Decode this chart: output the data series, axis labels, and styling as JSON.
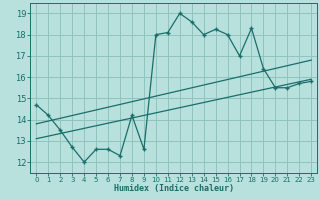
{
  "xlabel": "Humidex (Indice chaleur)",
  "bg_color": "#b8e0dc",
  "grid_color": "#90c4c0",
  "line_color": "#1a6e6a",
  "xlim": [
    -0.5,
    23.5
  ],
  "ylim": [
    11.5,
    19.5
  ],
  "xticks": [
    0,
    1,
    2,
    3,
    4,
    5,
    6,
    7,
    8,
    9,
    10,
    11,
    12,
    13,
    14,
    15,
    16,
    17,
    18,
    19,
    20,
    21,
    22,
    23
  ],
  "yticks": [
    12,
    13,
    14,
    15,
    16,
    17,
    18,
    19
  ],
  "main_x": [
    0,
    1,
    2,
    3,
    4,
    5,
    6,
    7,
    8,
    9,
    10,
    11,
    12,
    13,
    14,
    15,
    16,
    17,
    18,
    19,
    20,
    21,
    22,
    23
  ],
  "main_y": [
    14.7,
    14.2,
    13.5,
    12.7,
    12.0,
    12.6,
    12.6,
    12.3,
    14.2,
    12.6,
    18.0,
    18.1,
    19.0,
    18.6,
    18.0,
    18.25,
    18.0,
    17.0,
    18.3,
    16.4,
    15.5,
    15.5,
    15.7,
    15.8
  ],
  "line1_x": [
    0,
    23
  ],
  "line1_y": [
    13.8,
    16.8
  ],
  "line2_x": [
    0,
    23
  ],
  "line2_y": [
    13.1,
    15.9
  ]
}
